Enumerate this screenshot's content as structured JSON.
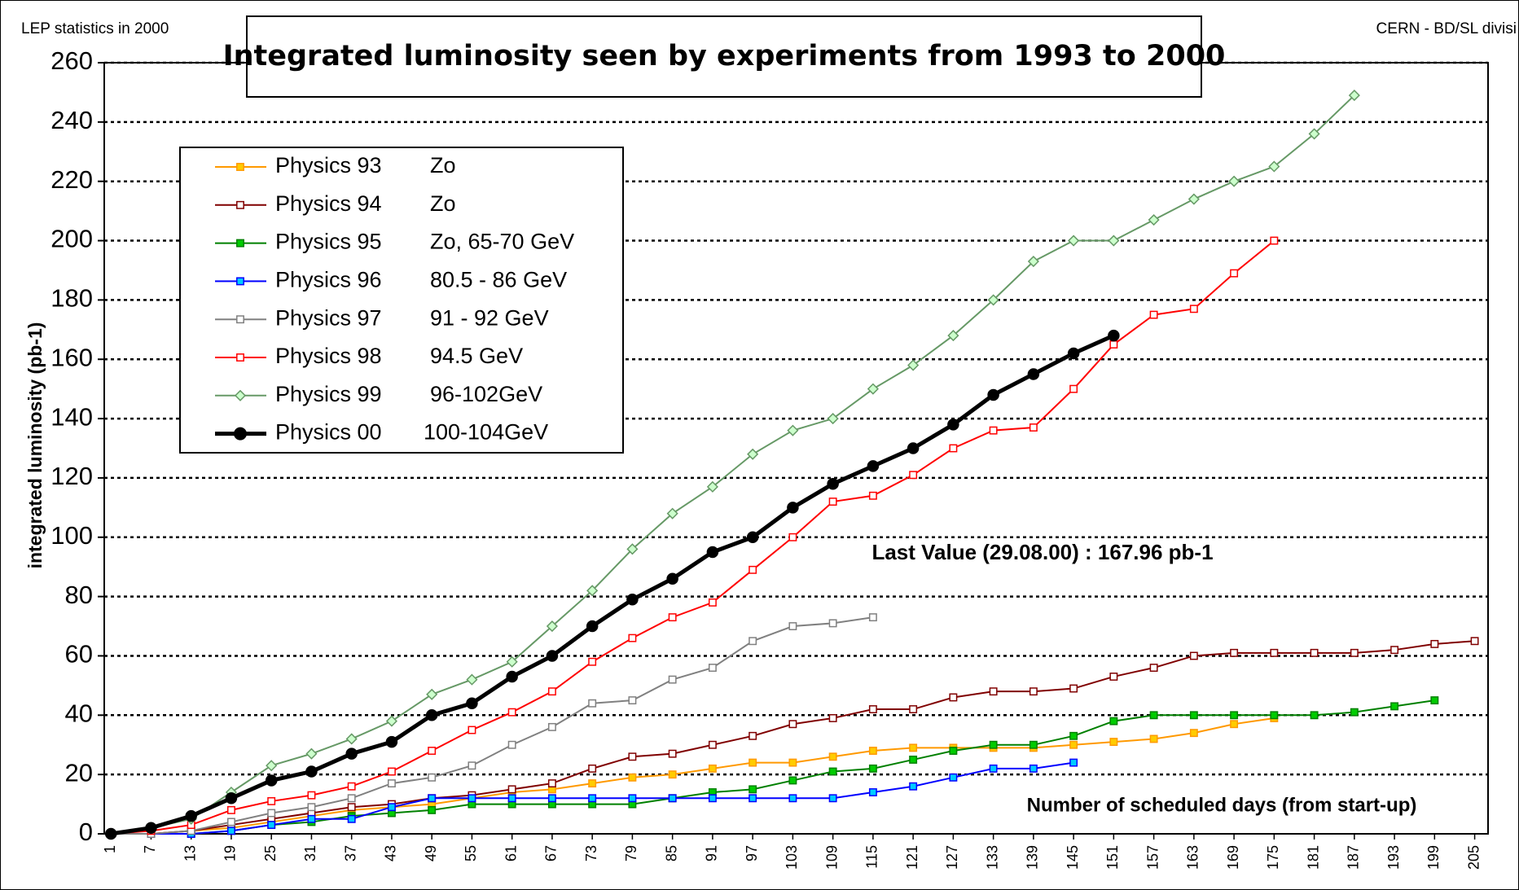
{
  "chart_data": {
    "type": "line",
    "title": "Integrated luminosity seen by experiments from 1993 to 2000",
    "top_left_note": "LEP statistics in 2000",
    "top_right_note": "CERN - BD/SL divisi",
    "ylabel": "integrated luminosity (pb-1)",
    "xlabel": "Number of scheduled days (from start-up)",
    "annotation": "Last Value (29.08.00) : 167.96 pb-1",
    "x": [
      1,
      7,
      13,
      19,
      25,
      31,
      37,
      43,
      49,
      55,
      61,
      67,
      73,
      79,
      85,
      91,
      97,
      103,
      109,
      115,
      121,
      127,
      133,
      139,
      145,
      151,
      157,
      163,
      169,
      175,
      181,
      187,
      193,
      199,
      205
    ],
    "xlim": [
      0,
      207
    ],
    "xticks": [
      1,
      7,
      13,
      19,
      25,
      31,
      37,
      43,
      49,
      55,
      61,
      67,
      73,
      79,
      85,
      91,
      97,
      103,
      109,
      115,
      121,
      127,
      133,
      139,
      145,
      151,
      157,
      163,
      169,
      175,
      181,
      187,
      193,
      199,
      205
    ],
    "ylim": [
      0,
      260
    ],
    "yticks": [
      0,
      20,
      40,
      60,
      80,
      100,
      120,
      140,
      160,
      180,
      200,
      220,
      240,
      260
    ],
    "grid": true,
    "legend": "upper left",
    "series": [
      {
        "name": "Physics 93",
        "energy": "Zo",
        "color": "#ff9900",
        "marker": "square",
        "marker_fill": "#ffcc00",
        "values": [
          0,
          0,
          1,
          2,
          4,
          6,
          8,
          9,
          10,
          12,
          14,
          15,
          17,
          19,
          20,
          22,
          24,
          24,
          26,
          28,
          29,
          29,
          29,
          29,
          30,
          31,
          32,
          34,
          37,
          39,
          null,
          null,
          null,
          null,
          null
        ]
      },
      {
        "name": "Physics 94",
        "energy": "Zo",
        "color": "#800000",
        "marker": "square",
        "marker_fill": "#ffffff",
        "values": [
          0,
          0,
          1,
          3,
          5,
          7,
          9,
          10,
          12,
          13,
          15,
          17,
          22,
          26,
          27,
          30,
          33,
          37,
          39,
          42,
          42,
          46,
          48,
          48,
          49,
          53,
          56,
          60,
          61,
          61,
          61,
          61,
          62,
          64,
          65
        ]
      },
      {
        "name": "Physics 95",
        "energy": "Zo, 65-70 GeV",
        "color": "#008000",
        "marker": "square",
        "marker_fill": "#00cc00",
        "values": [
          0,
          0,
          0,
          1,
          3,
          4,
          6,
          7,
          8,
          10,
          10,
          10,
          10,
          10,
          12,
          14,
          15,
          18,
          21,
          22,
          25,
          28,
          30,
          30,
          33,
          38,
          40,
          40,
          40,
          40,
          40,
          41,
          43,
          45,
          null
        ]
      },
      {
        "name": "Physics 96",
        "energy": "80.5 - 86 GeV",
        "color": "#0000ff",
        "marker": "square",
        "marker_fill": "#00ccff",
        "values": [
          0,
          0,
          0,
          1,
          3,
          5,
          5,
          9,
          12,
          12,
          12,
          12,
          12,
          12,
          12,
          12,
          12,
          12,
          12,
          14,
          16,
          19,
          22,
          22,
          24,
          null,
          null,
          null,
          null,
          null,
          null,
          null,
          null,
          null,
          null
        ]
      },
      {
        "name": "Physics 97",
        "energy": "91 - 92 GeV",
        "color": "#808080",
        "marker": "square",
        "marker_fill": "#ffffff",
        "values": [
          0,
          0,
          1,
          4,
          7,
          9,
          12,
          17,
          19,
          23,
          30,
          36,
          44,
          45,
          52,
          56,
          65,
          70,
          71,
          73,
          null,
          null,
          null,
          null,
          null,
          null,
          null,
          null,
          null,
          null,
          null,
          null,
          null,
          null,
          null
        ]
      },
      {
        "name": "Physics 98",
        "energy": "94.5 GeV",
        "color": "#ff0000",
        "marker": "square",
        "marker_fill": "#ffffff",
        "values": [
          0,
          1,
          3,
          8,
          11,
          13,
          16,
          21,
          28,
          35,
          41,
          48,
          58,
          66,
          73,
          78,
          89,
          100,
          112,
          114,
          121,
          130,
          136,
          137,
          150,
          165,
          175,
          177,
          189,
          200,
          null,
          null,
          null,
          null,
          null
        ]
      },
      {
        "name": "Physics 99",
        "energy": "96-102GeV",
        "color": "#669966",
        "marker": "diamond",
        "marker_fill": "#ccffcc",
        "values": [
          0,
          2,
          5,
          14,
          23,
          27,
          32,
          38,
          47,
          52,
          58,
          70,
          82,
          96,
          108,
          117,
          128,
          136,
          140,
          150,
          158,
          168,
          180,
          193,
          200,
          200,
          207,
          214,
          220,
          225,
          236,
          249,
          null,
          null,
          null
        ]
      },
      {
        "name": "Physics 00",
        "energy": "100-104GeV",
        "color": "#000000",
        "marker": "circle",
        "marker_fill": "#000000",
        "values": [
          0,
          2,
          6,
          12,
          18,
          21,
          27,
          31,
          40,
          44,
          53,
          60,
          70,
          79,
          86,
          95,
          100,
          110,
          118,
          124,
          130,
          138,
          148,
          155,
          162,
          168,
          null,
          null,
          null,
          null,
          null,
          null,
          null,
          null,
          null
        ]
      }
    ]
  }
}
